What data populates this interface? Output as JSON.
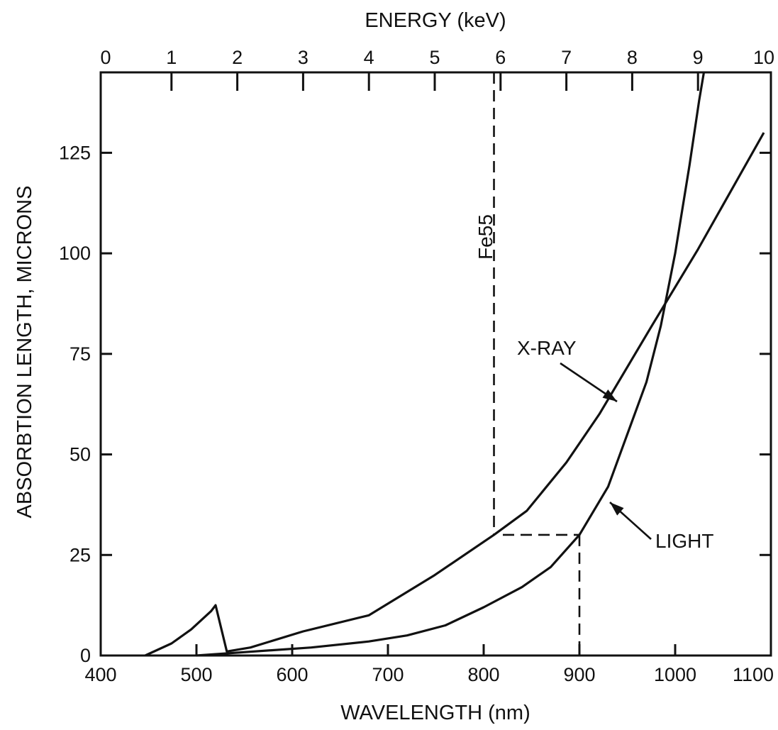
{
  "chart_data": {
    "type": "line",
    "title": "",
    "xlabel": "WAVELENGTH (nm)",
    "ylabel": "ABSORBTION LENGTH, MICRONS",
    "x2label": "ENERGY (keV)",
    "xlim": [
      400,
      1100
    ],
    "ylim": [
      0,
      145
    ],
    "x2lim": [
      0,
      10
    ],
    "x_ticks": [
      {
        "value": 400,
        "label": "400"
      },
      {
        "value": 500,
        "label": "500"
      },
      {
        "value": 600,
        "label": "600"
      },
      {
        "value": 700,
        "label": "700"
      },
      {
        "value": 800,
        "label": "800"
      },
      {
        "value": 900,
        "label": "900"
      },
      {
        "value": 1000,
        "label": "1000"
      },
      {
        "value": 1100,
        "label": "1100"
      }
    ],
    "y_ticks": [
      {
        "value": 0,
        "label": "0"
      },
      {
        "value": 25,
        "label": "25"
      },
      {
        "value": 50,
        "label": "50"
      },
      {
        "value": 75,
        "label": "75"
      },
      {
        "value": 100,
        "label": "100"
      },
      {
        "value": 125,
        "label": "125"
      }
    ],
    "x2_ticks": [
      {
        "value": 0,
        "label": "0"
      },
      {
        "value": 1,
        "label": "1"
      },
      {
        "value": 2,
        "label": "2"
      },
      {
        "value": 3,
        "label": "3"
      },
      {
        "value": 4,
        "label": "4"
      },
      {
        "value": 5,
        "label": "5"
      },
      {
        "value": 6,
        "label": "6"
      },
      {
        "value": 7,
        "label": "7"
      },
      {
        "value": 8,
        "label": "8"
      },
      {
        "value": 9,
        "label": "9"
      },
      {
        "value": 10,
        "label": "10"
      }
    ],
    "grid": false,
    "series": [
      {
        "name": "X-RAY",
        "axis": "energy",
        "points": [
          {
            "x": 0.6,
            "y": 0
          },
          {
            "x": 1.0,
            "y": 3
          },
          {
            "x": 1.3,
            "y": 6.5
          },
          {
            "x": 1.6,
            "y": 11
          },
          {
            "x": 1.67,
            "y": 12.5
          },
          {
            "x": 1.84,
            "y": 1
          },
          {
            "x": 2.2,
            "y": 2
          },
          {
            "x": 3.0,
            "y": 6
          },
          {
            "x": 4.0,
            "y": 10
          },
          {
            "x": 5.0,
            "y": 20
          },
          {
            "x": 5.9,
            "y": 30
          },
          {
            "x": 6.4,
            "y": 36
          },
          {
            "x": 7.0,
            "y": 48
          },
          {
            "x": 7.5,
            "y": 60
          },
          {
            "x": 8.3,
            "y": 82
          },
          {
            "x": 9.0,
            "y": 101
          },
          {
            "x": 10.0,
            "y": 130
          }
        ]
      },
      {
        "name": "LIGHT",
        "axis": "wavelength",
        "points": [
          {
            "x": 500,
            "y": 0
          },
          {
            "x": 560,
            "y": 1
          },
          {
            "x": 620,
            "y": 2
          },
          {
            "x": 680,
            "y": 3.5
          },
          {
            "x": 720,
            "y": 5
          },
          {
            "x": 760,
            "y": 7.5
          },
          {
            "x": 800,
            "y": 12
          },
          {
            "x": 840,
            "y": 17
          },
          {
            "x": 870,
            "y": 22
          },
          {
            "x": 900,
            "y": 30
          },
          {
            "x": 930,
            "y": 42
          },
          {
            "x": 950,
            "y": 55
          },
          {
            "x": 970,
            "y": 68
          },
          {
            "x": 985,
            "y": 82
          },
          {
            "x": 1000,
            "y": 100
          },
          {
            "x": 1015,
            "y": 122
          },
          {
            "x": 1025,
            "y": 138
          },
          {
            "x": 1030,
            "y": 145
          }
        ]
      }
    ],
    "annotations": [
      {
        "text": "Fe55",
        "type": "vertical-dashed",
        "energy": 5.9,
        "y_from": 30,
        "y_to": 145
      },
      {
        "text": "",
        "type": "horizontal-dashed",
        "y": 30,
        "x_from": 820,
        "x_to": 900
      },
      {
        "text": "",
        "type": "vertical-dashed",
        "x": 900,
        "y_from": 0,
        "y_to": 30
      }
    ],
    "labels": {
      "xray": "X-RAY",
      "light": "LIGHT",
      "fe55": "Fe55"
    }
  }
}
